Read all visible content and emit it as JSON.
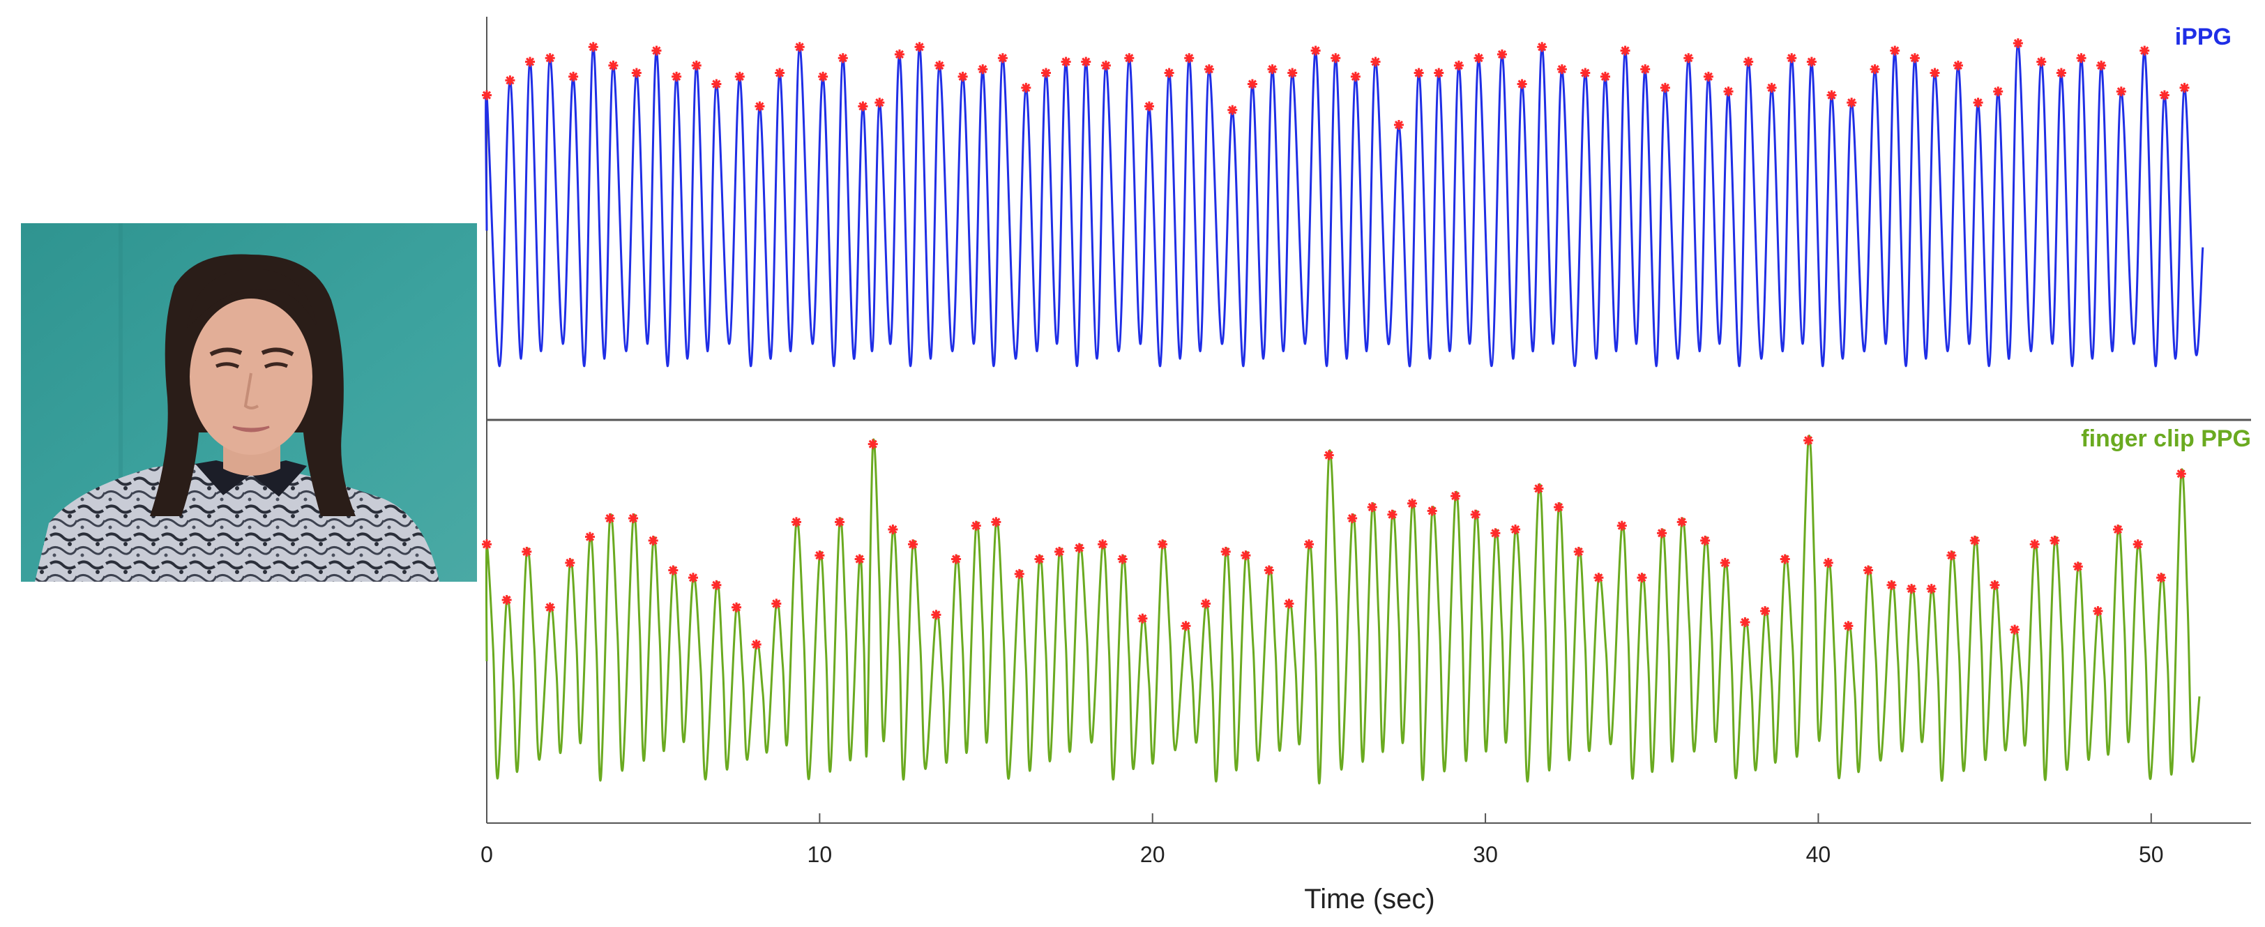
{
  "photo": {
    "subject": "participant-face-video-frame",
    "background_color": "#3a9c99"
  },
  "chart_data": {
    "type": "line",
    "xlabel": "Time (sec)",
    "xlim": [
      0,
      53
    ],
    "xticks": [
      0,
      10,
      20,
      30,
      40,
      50
    ],
    "xtick_labels": [
      "0",
      "10",
      "20",
      "30",
      "40",
      "50"
    ],
    "grid": false,
    "peak_marker_color": "#ff2a2a",
    "series": [
      {
        "name": "iPPG",
        "label": "iPPG",
        "color": "#1f2ee6",
        "peaks_x": [
          0.0,
          0.7,
          1.3,
          1.9,
          2.6,
          3.2,
          3.8,
          4.5,
          5.1,
          5.7,
          6.3,
          6.9,
          7.6,
          8.2,
          8.8,
          9.4,
          10.1,
          10.7,
          11.3,
          11.8,
          12.4,
          13.0,
          13.6,
          14.3,
          14.9,
          15.5,
          16.2,
          16.8,
          17.4,
          18.0,
          18.6,
          19.3,
          19.9,
          20.5,
          21.1,
          21.7,
          22.4,
          23.0,
          23.6,
          24.2,
          24.9,
          25.5,
          26.1,
          26.7,
          27.4,
          28.0,
          28.6,
          29.2,
          29.8,
          30.5,
          31.1,
          31.7,
          32.3,
          33.0,
          33.6,
          34.2,
          34.8,
          35.4,
          36.1,
          36.7,
          37.3,
          37.9,
          38.6,
          39.2,
          39.8,
          40.4,
          41.0,
          41.7,
          42.3,
          42.9,
          43.5,
          44.2,
          44.8,
          45.4,
          46.0,
          46.7,
          47.3,
          47.9,
          48.5,
          49.1,
          49.8,
          50.4,
          51.0
        ],
        "peaks_y": [
          0.83,
          0.87,
          0.92,
          0.93,
          0.88,
          0.96,
          0.91,
          0.89,
          0.95,
          0.88,
          0.91,
          0.86,
          0.88,
          0.8,
          0.89,
          0.96,
          0.88,
          0.93,
          0.8,
          0.81,
          0.94,
          0.96,
          0.91,
          0.88,
          0.9,
          0.93,
          0.85,
          0.89,
          0.92,
          0.92,
          0.91,
          0.93,
          0.8,
          0.89,
          0.93,
          0.9,
          0.79,
          0.86,
          0.9,
          0.89,
          0.95,
          0.93,
          0.88,
          0.92,
          0.75,
          0.89,
          0.89,
          0.91,
          0.93,
          0.94,
          0.86,
          0.96,
          0.9,
          0.89,
          0.88,
          0.95,
          0.9,
          0.85,
          0.93,
          0.88,
          0.84,
          0.92,
          0.85,
          0.93,
          0.92,
          0.83,
          0.81,
          0.9,
          0.95,
          0.93,
          0.89,
          0.91,
          0.81,
          0.84,
          0.97,
          0.92,
          0.89,
          0.93,
          0.91,
          0.84,
          0.95,
          0.83,
          0.85
        ],
        "trough_y": 0.1
      },
      {
        "name": "finger clip PPG",
        "label": "finger clip PPG",
        "color": "#6aaa20",
        "peaks_x": [
          0.0,
          0.6,
          1.2,
          1.9,
          2.5,
          3.1,
          3.7,
          4.4,
          5.0,
          5.6,
          6.2,
          6.9,
          7.5,
          8.1,
          8.7,
          9.3,
          10.0,
          10.6,
          11.2,
          11.6,
          12.2,
          12.8,
          13.5,
          14.1,
          14.7,
          15.3,
          16.0,
          16.6,
          17.2,
          17.8,
          18.5,
          19.1,
          19.7,
          20.3,
          21.0,
          21.6,
          22.2,
          22.8,
          23.5,
          24.1,
          24.7,
          25.3,
          26.0,
          26.6,
          27.2,
          27.8,
          28.4,
          29.1,
          29.7,
          30.3,
          30.9,
          31.6,
          32.2,
          32.8,
          33.4,
          34.1,
          34.7,
          35.3,
          35.9,
          36.6,
          37.2,
          37.8,
          38.4,
          39.0,
          39.7,
          40.3,
          40.9,
          41.5,
          42.2,
          42.8,
          43.4,
          44.0,
          44.7,
          45.3,
          45.9,
          46.5,
          47.1,
          47.8,
          48.4,
          49.0,
          49.6,
          50.3,
          50.9
        ],
        "peaks_y": [
          0.71,
          0.56,
          0.69,
          0.54,
          0.66,
          0.73,
          0.78,
          0.78,
          0.72,
          0.64,
          0.62,
          0.6,
          0.54,
          0.44,
          0.55,
          0.77,
          0.68,
          0.77,
          0.67,
          0.98,
          0.75,
          0.71,
          0.52,
          0.67,
          0.76,
          0.77,
          0.63,
          0.67,
          0.69,
          0.7,
          0.71,
          0.67,
          0.51,
          0.71,
          0.49,
          0.55,
          0.69,
          0.68,
          0.64,
          0.55,
          0.71,
          0.95,
          0.78,
          0.81,
          0.79,
          0.82,
          0.8,
          0.84,
          0.79,
          0.74,
          0.75,
          0.86,
          0.81,
          0.69,
          0.62,
          0.76,
          0.62,
          0.74,
          0.77,
          0.72,
          0.66,
          0.5,
          0.53,
          0.67,
          0.99,
          0.66,
          0.49,
          0.64,
          0.6,
          0.59,
          0.59,
          0.68,
          0.72,
          0.6,
          0.48,
          0.71,
          0.72,
          0.65,
          0.53,
          0.75,
          0.71,
          0.62,
          0.9
        ],
        "trough_y": 0.08
      }
    ]
  }
}
